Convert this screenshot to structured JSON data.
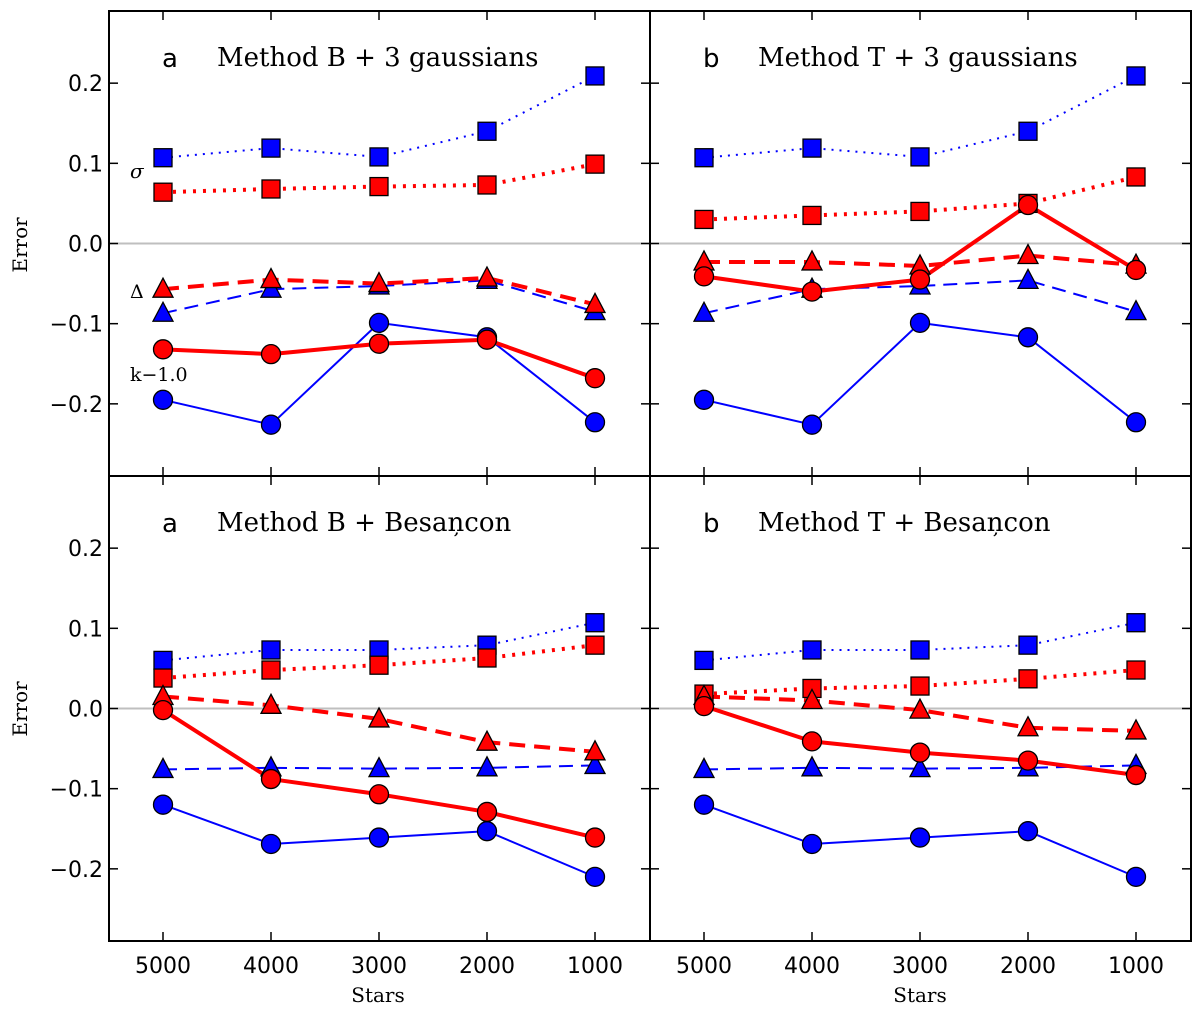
{
  "figure": {
    "ylabel": "Error",
    "xlabel": "Stars",
    "colors": {
      "B_variant": "#0000ff",
      "T_variant": "#ff0000",
      "zero_line": "#bfbfbf"
    }
  },
  "chart_data": [
    {
      "type": "line",
      "letter": "a",
      "title": "Method B + 3 gaussians",
      "categories": [
        "5000",
        "4000",
        "3000",
        "2000",
        "1000"
      ],
      "xlabel": "",
      "ylabel": "Error",
      "ylim": [
        -0.29,
        0.29
      ],
      "yticks": [
        "0.2",
        "0.1",
        "0.0",
        "−0.1",
        "−0.2"
      ],
      "annotations": {
        "sigma": "σ",
        "delta": "Δ",
        "k": "k−1.0"
      },
      "series": [
        {
          "name": "blue sigma",
          "color": "#0000ff",
          "marker": "square",
          "dash": "dotted",
          "width": 2,
          "values": [
            0.107,
            0.119,
            0.108,
            0.14,
            0.209
          ]
        },
        {
          "name": "red sigma",
          "color": "#ff0000",
          "marker": "square",
          "dash": "dotted",
          "width": 4,
          "values": [
            0.064,
            0.068,
            0.071,
            0.073,
            0.099
          ]
        },
        {
          "name": "blue delta",
          "color": "#0000ff",
          "marker": "triangle",
          "dash": "dashed",
          "width": 2,
          "values": [
            -0.087,
            -0.057,
            -0.053,
            -0.046,
            -0.085
          ]
        },
        {
          "name": "red delta",
          "color": "#ff0000",
          "marker": "triangle",
          "dash": "dashed",
          "width": 4,
          "values": [
            -0.057,
            -0.045,
            -0.05,
            -0.043,
            -0.076
          ]
        },
        {
          "name": "blue k",
          "color": "#0000ff",
          "marker": "circle",
          "dash": "solid",
          "width": 2,
          "values": [
            -0.195,
            -0.226,
            -0.099,
            -0.117,
            -0.223
          ]
        },
        {
          "name": "red k",
          "color": "#ff0000",
          "marker": "circle",
          "dash": "solid",
          "width": 4,
          "values": [
            -0.132,
            -0.138,
            -0.125,
            -0.12,
            -0.168
          ]
        }
      ]
    },
    {
      "type": "line",
      "letter": "b",
      "title": "Method T + 3 gaussians",
      "categories": [
        "5000",
        "4000",
        "3000",
        "2000",
        "1000"
      ],
      "xlabel": "",
      "ylabel": "",
      "ylim": [
        -0.29,
        0.29
      ],
      "series": [
        {
          "name": "blue sigma",
          "color": "#0000ff",
          "marker": "square",
          "dash": "dotted",
          "width": 2,
          "values": [
            0.107,
            0.119,
            0.108,
            0.14,
            0.209
          ]
        },
        {
          "name": "red sigma",
          "color": "#ff0000",
          "marker": "square",
          "dash": "dotted",
          "width": 4,
          "values": [
            0.03,
            0.035,
            0.04,
            0.05,
            0.083
          ]
        },
        {
          "name": "blue delta",
          "color": "#0000ff",
          "marker": "triangle",
          "dash": "dashed",
          "width": 2,
          "values": [
            -0.087,
            -0.057,
            -0.053,
            -0.046,
            -0.085
          ]
        },
        {
          "name": "red delta",
          "color": "#ff0000",
          "marker": "triangle",
          "dash": "dashed",
          "width": 4,
          "values": [
            -0.023,
            -0.023,
            -0.028,
            -0.015,
            -0.027
          ]
        },
        {
          "name": "blue k",
          "color": "#0000ff",
          "marker": "circle",
          "dash": "solid",
          "width": 2,
          "values": [
            -0.195,
            -0.226,
            -0.099,
            -0.117,
            -0.223
          ]
        },
        {
          "name": "red k",
          "color": "#ff0000",
          "marker": "circle",
          "dash": "solid",
          "width": 4,
          "values": [
            -0.041,
            -0.06,
            -0.045,
            0.048,
            -0.033
          ]
        }
      ]
    },
    {
      "type": "line",
      "letter": "a",
      "title": "Method B + Besaņcon",
      "categories": [
        "5000",
        "4000",
        "3000",
        "2000",
        "1000"
      ],
      "xlabel": "Stars",
      "ylabel": "Error",
      "ylim": [
        -0.29,
        0.29
      ],
      "yticks": [
        "0.2",
        "0.1",
        "0.0",
        "−0.1",
        "−0.2"
      ],
      "xticks": [
        "5000",
        "4000",
        "3000",
        "2000",
        "1000"
      ],
      "series": [
        {
          "name": "blue sigma",
          "color": "#0000ff",
          "marker": "square",
          "dash": "dotted",
          "width": 2,
          "values": [
            0.06,
            0.073,
            0.073,
            0.079,
            0.107
          ]
        },
        {
          "name": "red sigma",
          "color": "#ff0000",
          "marker": "square",
          "dash": "dotted",
          "width": 4,
          "values": [
            0.038,
            0.048,
            0.054,
            0.063,
            0.079
          ]
        },
        {
          "name": "blue delta",
          "color": "#0000ff",
          "marker": "triangle",
          "dash": "dashed",
          "width": 2,
          "values": [
            -0.076,
            -0.074,
            -0.075,
            -0.074,
            -0.071
          ]
        },
        {
          "name": "red delta",
          "color": "#ff0000",
          "marker": "triangle",
          "dash": "dashed",
          "width": 4,
          "values": [
            0.015,
            0.004,
            -0.013,
            -0.042,
            -0.054
          ]
        },
        {
          "name": "blue k",
          "color": "#0000ff",
          "marker": "circle",
          "dash": "solid",
          "width": 2,
          "values": [
            -0.12,
            -0.169,
            -0.161,
            -0.153,
            -0.21
          ]
        },
        {
          "name": "red k",
          "color": "#ff0000",
          "marker": "circle",
          "dash": "solid",
          "width": 4,
          "values": [
            -0.002,
            -0.088,
            -0.107,
            -0.129,
            -0.161
          ]
        }
      ]
    },
    {
      "type": "line",
      "letter": "b",
      "title": "Method T + Besaņcon",
      "categories": [
        "5000",
        "4000",
        "3000",
        "2000",
        "1000"
      ],
      "xlabel": "Stars",
      "ylabel": "",
      "ylim": [
        -0.29,
        0.29
      ],
      "xticks": [
        "5000",
        "4000",
        "3000",
        "2000",
        "1000"
      ],
      "series": [
        {
          "name": "blue sigma",
          "color": "#0000ff",
          "marker": "square",
          "dash": "dotted",
          "width": 2,
          "values": [
            0.06,
            0.073,
            0.073,
            0.079,
            0.107
          ]
        },
        {
          "name": "red sigma",
          "color": "#ff0000",
          "marker": "square",
          "dash": "dotted",
          "width": 4,
          "values": [
            0.018,
            0.025,
            0.028,
            0.037,
            0.048
          ]
        },
        {
          "name": "blue delta",
          "color": "#0000ff",
          "marker": "triangle",
          "dash": "dashed",
          "width": 2,
          "values": [
            -0.076,
            -0.074,
            -0.075,
            -0.074,
            -0.071
          ]
        },
        {
          "name": "red delta",
          "color": "#ff0000",
          "marker": "triangle",
          "dash": "dashed",
          "width": 4,
          "values": [
            0.015,
            0.01,
            -0.002,
            -0.024,
            -0.028
          ]
        },
        {
          "name": "blue k",
          "color": "#0000ff",
          "marker": "circle",
          "dash": "solid",
          "width": 2,
          "values": [
            -0.12,
            -0.169,
            -0.161,
            -0.153,
            -0.21
          ]
        },
        {
          "name": "red k",
          "color": "#ff0000",
          "marker": "circle",
          "dash": "solid",
          "width": 4,
          "values": [
            0.003,
            -0.041,
            -0.055,
            -0.065,
            -0.083
          ]
        }
      ]
    }
  ]
}
